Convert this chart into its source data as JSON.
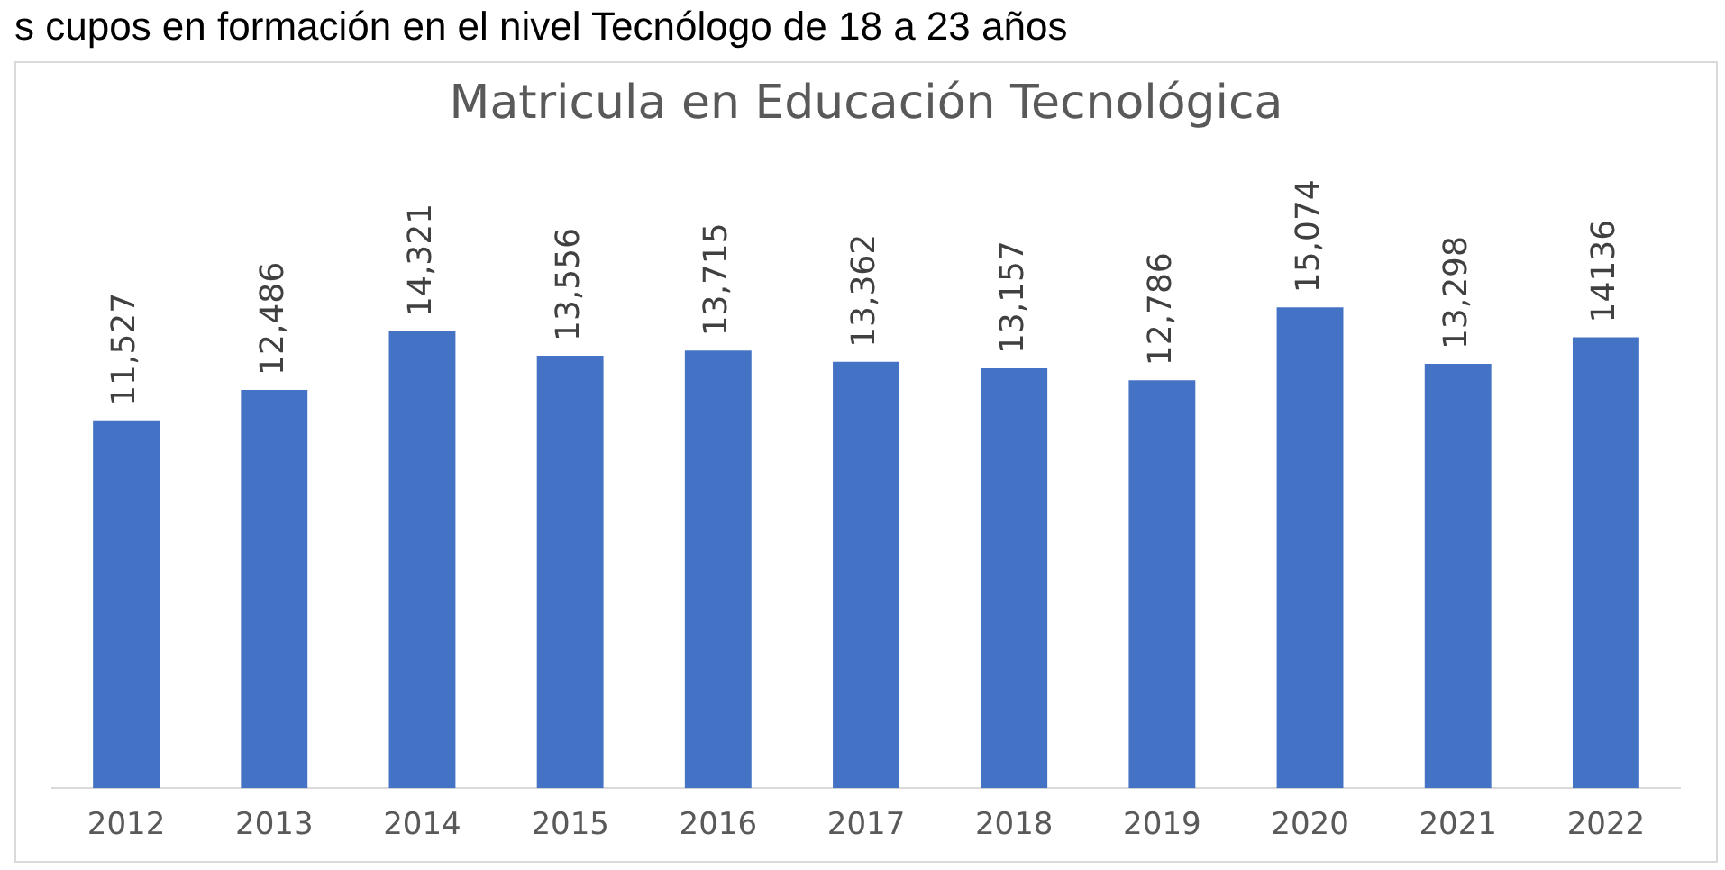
{
  "chart_data": {
    "type": "bar",
    "title": "Matricula en Educación Tecnológica",
    "annotations": [
      "s cupos en formación en el nivel Tecnólogo de 18 a 23 años"
    ],
    "categories": [
      "2012",
      "2013",
      "2014",
      "2015",
      "2016",
      "2017",
      "2018",
      "2019",
      "2020",
      "2021",
      "2022"
    ],
    "values": [
      11527,
      12486,
      14321,
      13556,
      13715,
      13362,
      13157,
      12786,
      15074,
      13298,
      14136
    ],
    "value_labels": [
      "11,527",
      "12,486",
      "14,321",
      "13,556",
      "13,715",
      "13,362",
      "13,157",
      "12,786",
      "15,074",
      "13,298",
      "14136"
    ],
    "color": "#4472c4",
    "tick_labels": "x",
    "grid": false,
    "legend": false
  }
}
